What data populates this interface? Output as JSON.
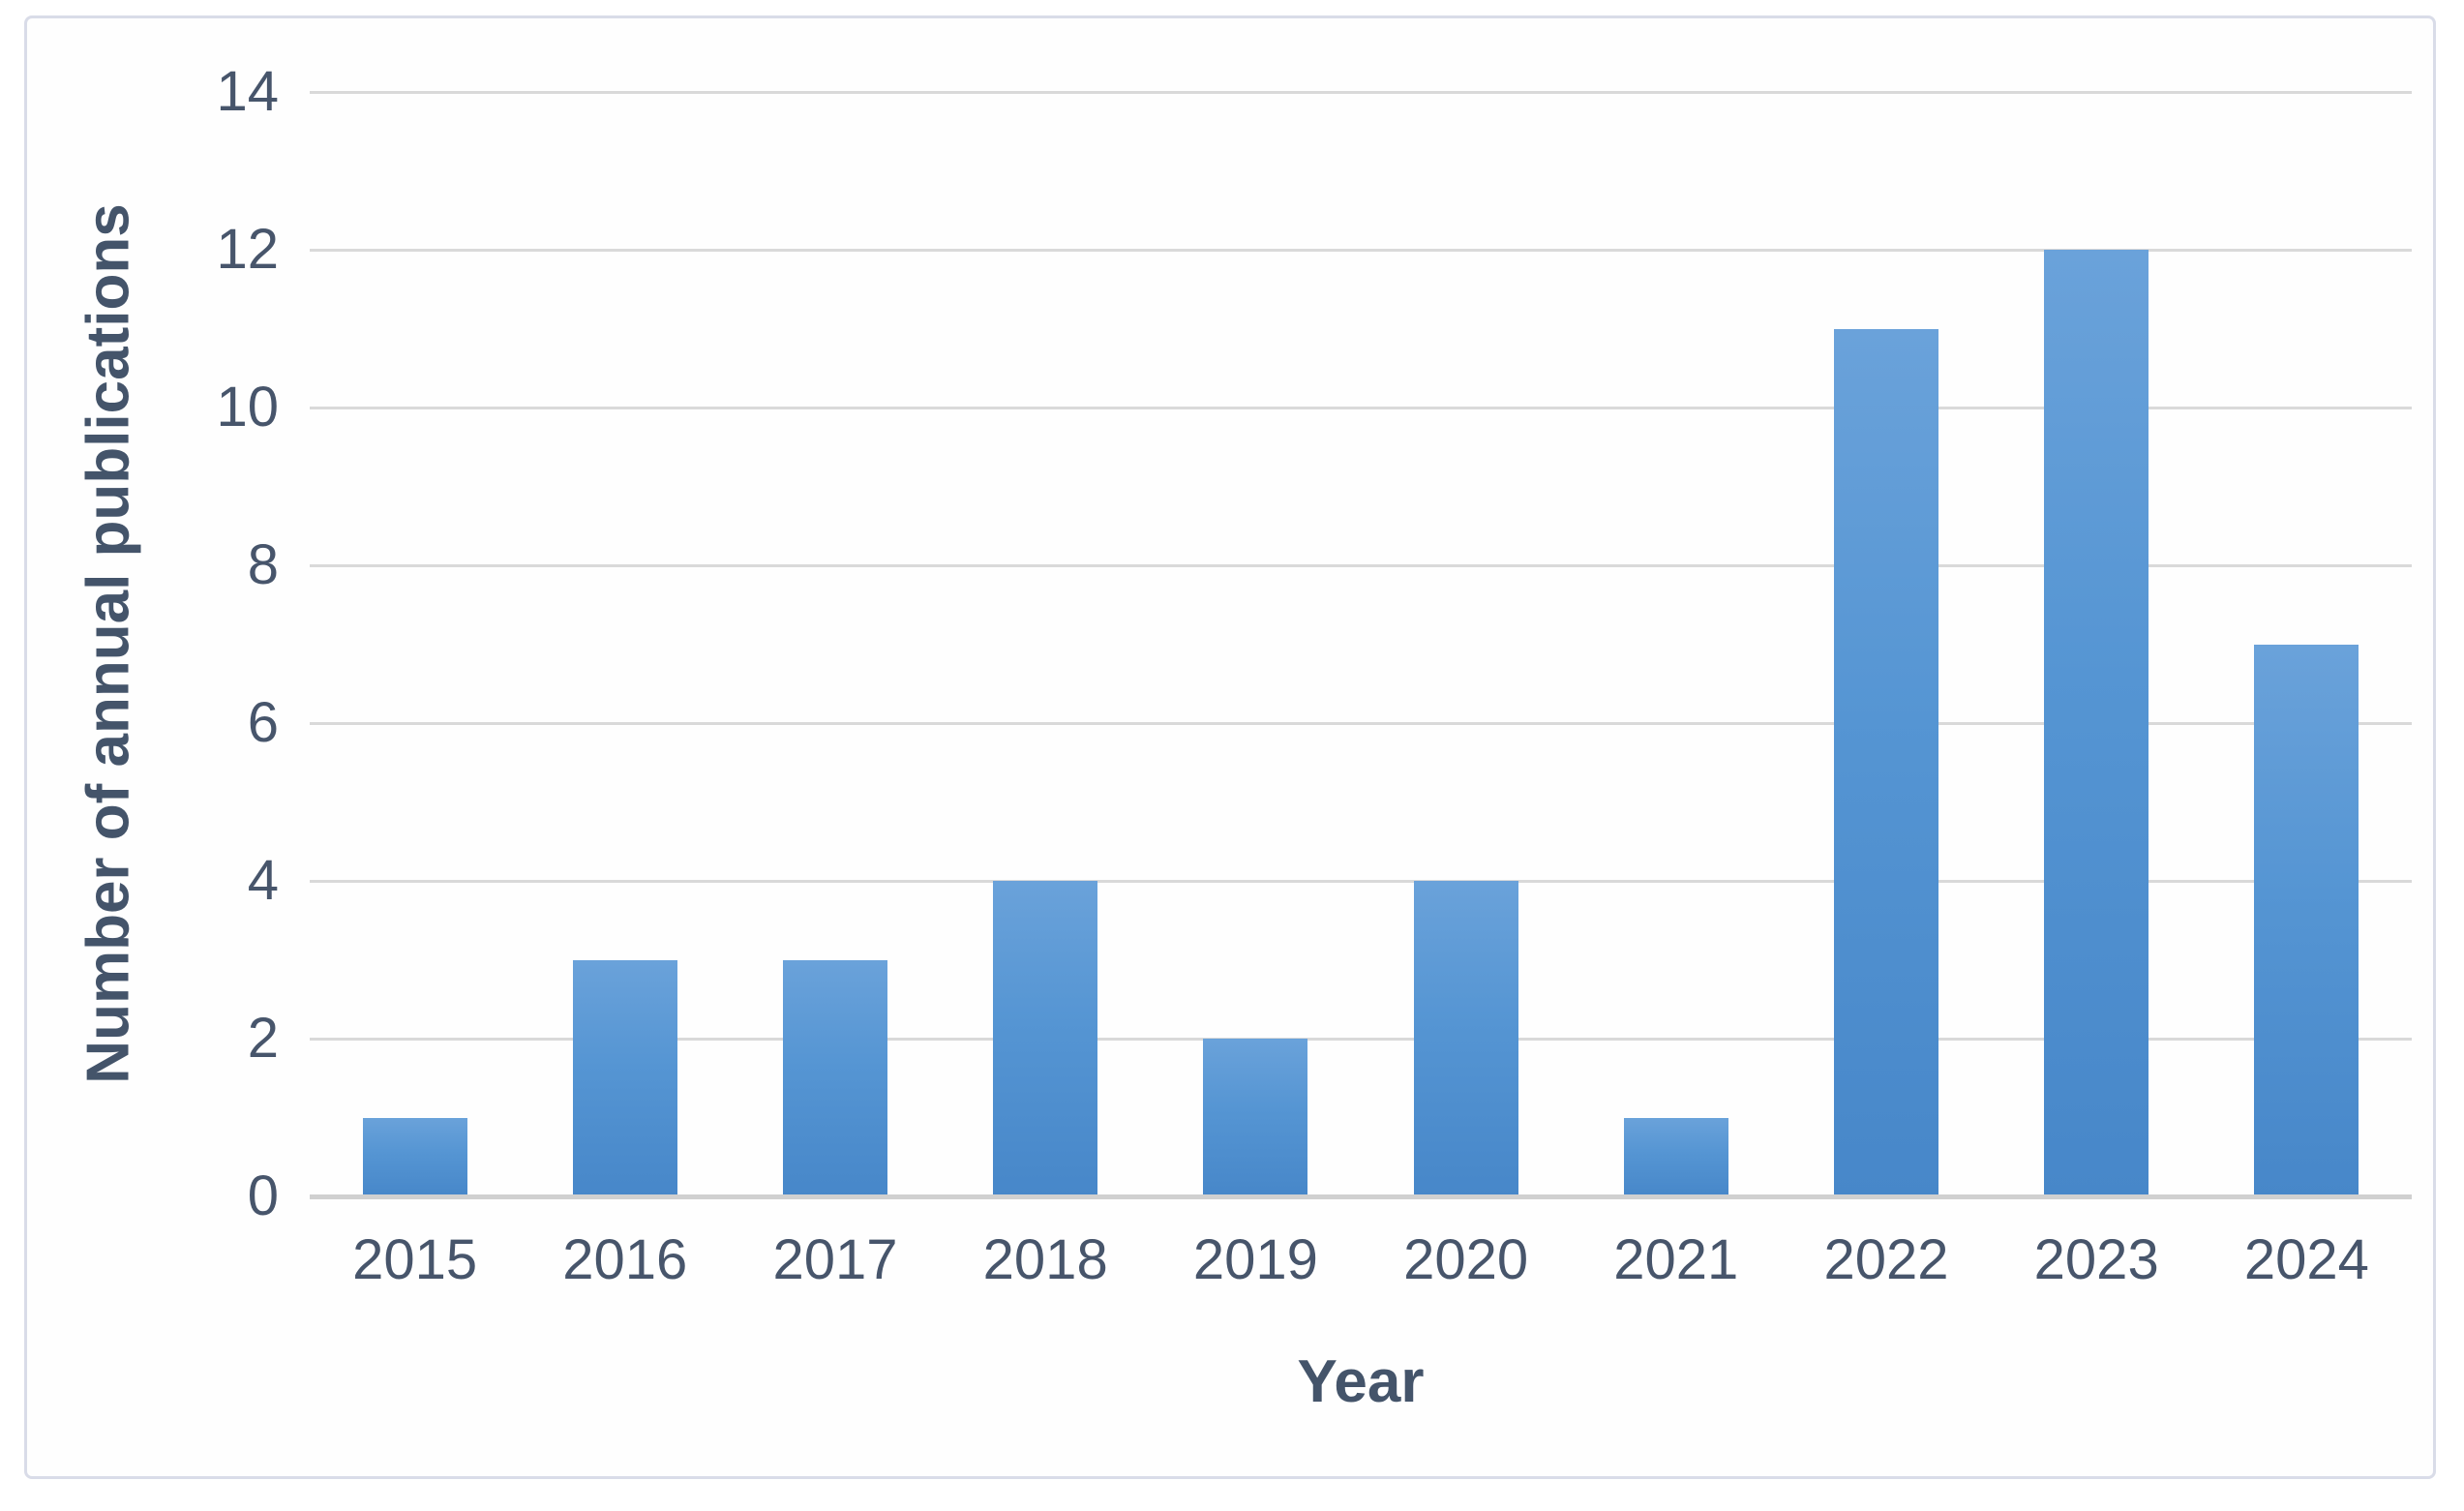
{
  "chart_data": {
    "type": "bar",
    "categories": [
      "2015",
      "2016",
      "2017",
      "2018",
      "2019",
      "2020",
      "2021",
      "2022",
      "2023",
      "2024"
    ],
    "values": [
      1,
      3,
      3,
      4,
      2,
      4,
      1,
      11,
      12,
      7
    ],
    "title": "",
    "xlabel": "Year",
    "ylabel": "Number of annual publications",
    "ylim": [
      0,
      14
    ],
    "ytick_step": 2,
    "yticks": [
      0,
      2,
      4,
      6,
      8,
      10,
      12,
      14
    ],
    "grid": "horizontal",
    "legend": "none",
    "colors": {
      "bar_top": "#6aa2da",
      "bar_bottom": "#4787c9",
      "gridline": "#d9d9d9",
      "axis_line": "#d0d0d0",
      "tick_text": "#47556b",
      "title_text": "#44546a",
      "frame_border": "#d9dce8",
      "background": "#ffffff"
    }
  }
}
